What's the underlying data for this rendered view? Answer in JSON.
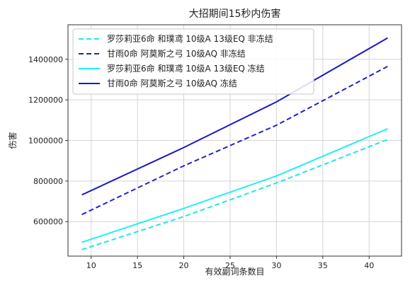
{
  "chart_data": {
    "type": "line",
    "title": "大招期间15秒内伤害",
    "xlabel": "有效副词条数目",
    "ylabel": "伤害",
    "xlim": [
      7.5,
      43.5
    ],
    "ylim": [
      430000,
      1570000
    ],
    "xticks": [
      10,
      15,
      20,
      25,
      30,
      35,
      40
    ],
    "xtick_labels": [
      "10",
      "15",
      "20",
      "25",
      "30",
      "35",
      "40"
    ],
    "yticks": [
      600000,
      800000,
      1000000,
      1200000,
      1400000
    ],
    "ytick_labels": [
      "600000",
      "800000",
      "1000000",
      "1200000",
      "1400000"
    ],
    "grid": true,
    "legend_position": "top-left",
    "x": [
      9,
      20,
      30,
      42
    ],
    "series": [
      {
        "name": "罗莎莉亚6命 和璞鸢 10级A 13级EQ 非冻结",
        "color": "#22e6e6",
        "dash": "dashed",
        "values": [
          462000,
          625000,
          790000,
          1005000
        ]
      },
      {
        "name": "甘雨0命 阿莫斯之弓 10级AQ 非冻结",
        "color": "#2222cc",
        "dash": "dashed",
        "values": [
          635000,
          875000,
          1075000,
          1365000
        ]
      },
      {
        "name": "罗莎莉亚6命 和璞鸢 10级A 13级EQ 冻结",
        "color": "#22f0f0",
        "dash": "solid",
        "values": [
          498000,
          665000,
          825000,
          1058000
        ]
      },
      {
        "name": "甘雨0命 阿莫斯之弓 10级AQ 冻结",
        "color": "#1a1ac0",
        "dash": "solid",
        "values": [
          732000,
          965000,
          1190000,
          1505000
        ]
      }
    ]
  }
}
